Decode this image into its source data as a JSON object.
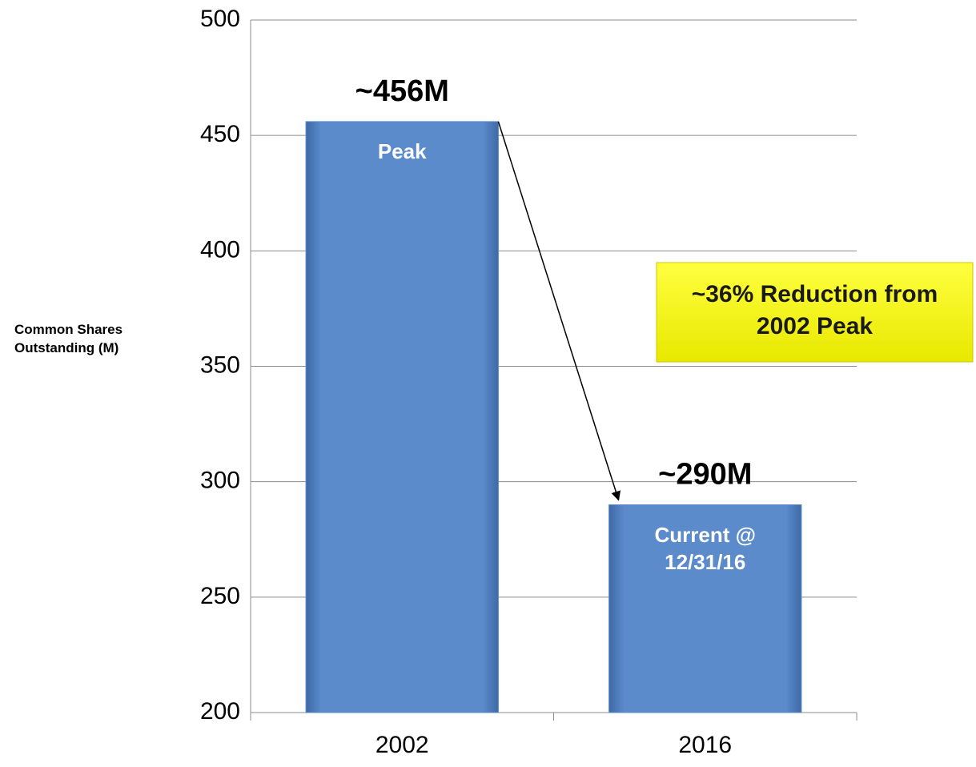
{
  "chart_data": {
    "type": "bar",
    "y_label": "Common Shares Outstanding (M)",
    "categories": [
      "2002",
      "2016"
    ],
    "values": [
      456,
      290
    ],
    "value_labels": [
      "~456M",
      "~290M"
    ],
    "bar_notes": [
      "Peak",
      "Current @ 12/31/16"
    ],
    "annotation": "~36% Reduction from 2002 Peak",
    "color": "#5b8bcb",
    "ylim": [
      200,
      500
    ],
    "yticks": [
      200,
      250,
      300,
      350,
      400,
      450,
      500
    ],
    "grid": true
  }
}
